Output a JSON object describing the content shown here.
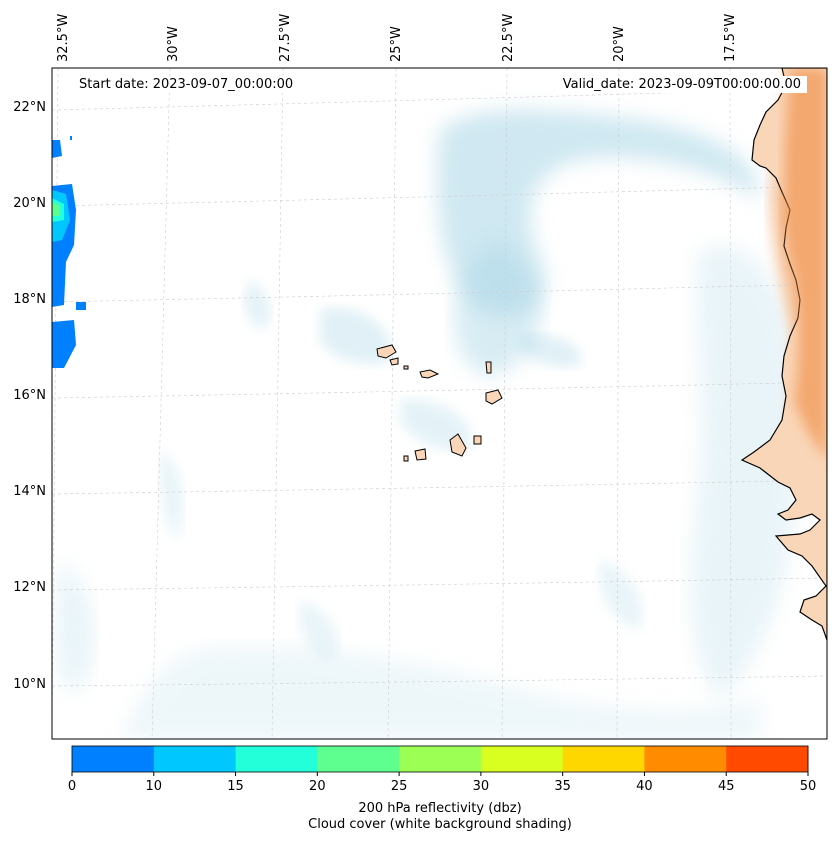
{
  "header": {
    "start_date": "Start date: 2023-09-07_00:00:00",
    "valid_date": "Valid_date: 2023-09-09T00:00:00.00"
  },
  "map": {
    "lon_labels": [
      "32.5°W",
      "30°W",
      "27.5°W",
      "25°W",
      "22.5°W",
      "20°W",
      "17.5°W"
    ],
    "lat_labels": [
      "22°N",
      "20°N",
      "18°N",
      "16°N",
      "14°N",
      "12°N",
      "10°N"
    ],
    "lon_range": [
      -32.6,
      -14.9
    ],
    "lat_range": [
      8.9,
      22.8
    ],
    "gridlines": true,
    "colors": {
      "land": "#f9d6b8",
      "coast": "#000000",
      "cloud": "#a9d6e6",
      "desert_haze": "#f0a060"
    }
  },
  "colorbar": {
    "ticks": [
      "0",
      "10",
      "15",
      "20",
      "25",
      "30",
      "35",
      "40",
      "45",
      "50"
    ],
    "colors": [
      "#0080ff",
      "#00c8ff",
      "#22ffd9",
      "#5fff8f",
      "#9cff53",
      "#d8ff1f",
      "#ffd700",
      "#ff8c00",
      "#ff4a00"
    ],
    "label_line1": "200 hPa reflectivity (dbz)",
    "label_line2": "Cloud cover (white background shading)"
  }
}
